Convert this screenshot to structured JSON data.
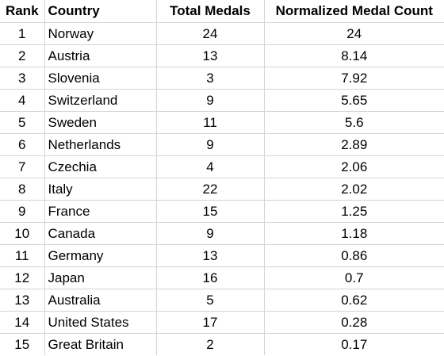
{
  "table": {
    "headers": {
      "rank": "Rank",
      "country": "Country",
      "total": "Total Medals",
      "normalized": "Normalized Medal Count"
    },
    "rows": [
      {
        "rank": "1",
        "country": "Norway",
        "total": "24",
        "normalized": "24"
      },
      {
        "rank": "2",
        "country": "Austria",
        "total": "13",
        "normalized": "8.14"
      },
      {
        "rank": "3",
        "country": "Slovenia",
        "total": "3",
        "normalized": "7.92"
      },
      {
        "rank": "4",
        "country": "Switzerland",
        "total": "9",
        "normalized": "5.65"
      },
      {
        "rank": "5",
        "country": "Sweden",
        "total": "11",
        "normalized": "5.6"
      },
      {
        "rank": "6",
        "country": "Netherlands",
        "total": "9",
        "normalized": "2.89"
      },
      {
        "rank": "7",
        "country": "Czechia",
        "total": "4",
        "normalized": "2.06"
      },
      {
        "rank": "8",
        "country": "Italy",
        "total": "22",
        "normalized": "2.02"
      },
      {
        "rank": "9",
        "country": "France",
        "total": "15",
        "normalized": "1.25"
      },
      {
        "rank": "10",
        "country": "Canada",
        "total": "9",
        "normalized": "1.18"
      },
      {
        "rank": "11",
        "country": "Germany",
        "total": "13",
        "normalized": "0.86"
      },
      {
        "rank": "12",
        "country": "Japan",
        "total": "16",
        "normalized": "0.7"
      },
      {
        "rank": "13",
        "country": "Australia",
        "total": "5",
        "normalized": "0.62"
      },
      {
        "rank": "14",
        "country": "United States",
        "total": "17",
        "normalized": "0.28"
      },
      {
        "rank": "15",
        "country": "Great Britain",
        "total": "2",
        "normalized": "0.17"
      }
    ]
  }
}
